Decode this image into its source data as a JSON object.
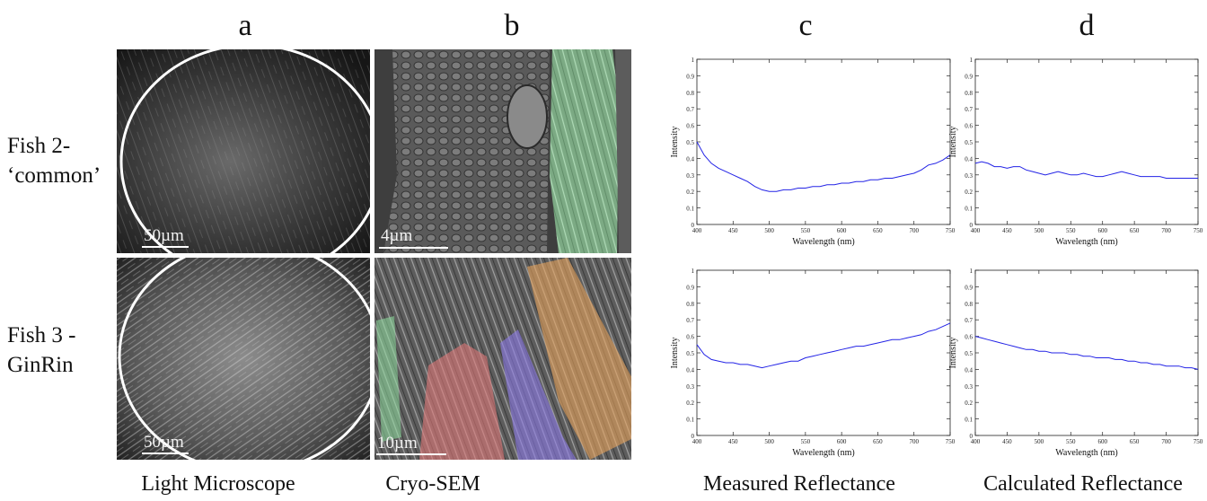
{
  "columns": [
    {
      "letter": "a",
      "caption": "Light Microscope"
    },
    {
      "letter": "b",
      "caption": "Cryo-SEM"
    },
    {
      "letter": "c",
      "caption": "Measured Reflectance"
    },
    {
      "letter": "d",
      "caption": "Calculated Reflectance"
    }
  ],
  "rows": [
    {
      "label_line1": "Fish 2-",
      "label_line2": "‘common’"
    },
    {
      "label_line1": "Fish 3 -",
      "label_line2": "GinRin"
    }
  ],
  "scale_bars": {
    "lm_top": "50µm",
    "sem_top": "4µm",
    "lm_bottom": "50µm",
    "sem_bottom": "10µm"
  },
  "colors": {
    "series": "#2323e6",
    "overlay_green": "#8fe0a0",
    "overlay_red": "#e07878",
    "overlay_purple": "#8c7ae8",
    "overlay_orange": "#e8a45c"
  },
  "chart_data": [
    {
      "type": "line",
      "id": "c-top",
      "xlabel": "Wavelength (nm)",
      "ylabel": "Intensity",
      "xlim": [
        400,
        750
      ],
      "ylim": [
        0,
        1
      ],
      "xticks": [
        400,
        450,
        500,
        550,
        600,
        650,
        700,
        750
      ],
      "yticks": [
        0,
        0.1,
        0.2,
        0.3,
        0.4,
        0.5,
        0.6,
        0.7,
        0.8,
        0.9,
        1
      ],
      "series": [
        {
          "x": [
            400,
            410,
            420,
            430,
            440,
            450,
            460,
            470,
            480,
            490,
            500,
            510,
            520,
            530,
            540,
            550,
            560,
            570,
            580,
            590,
            600,
            610,
            620,
            630,
            640,
            650,
            660,
            670,
            680,
            690,
            700,
            710,
            720,
            730,
            740,
            750
          ],
          "y": [
            0.5,
            0.42,
            0.37,
            0.34,
            0.32,
            0.3,
            0.28,
            0.26,
            0.23,
            0.21,
            0.2,
            0.2,
            0.21,
            0.21,
            0.22,
            0.22,
            0.23,
            0.23,
            0.24,
            0.24,
            0.25,
            0.25,
            0.26,
            0.26,
            0.27,
            0.27,
            0.28,
            0.28,
            0.29,
            0.3,
            0.31,
            0.33,
            0.36,
            0.37,
            0.39,
            0.42
          ]
        }
      ]
    },
    {
      "type": "line",
      "id": "d-top",
      "xlabel": "Wavelength (nm)",
      "ylabel": "Intensity",
      "xlim": [
        400,
        750
      ],
      "ylim": [
        0,
        1
      ],
      "xticks": [
        400,
        450,
        500,
        550,
        600,
        650,
        700,
        750
      ],
      "yticks": [
        0,
        0.1,
        0.2,
        0.3,
        0.4,
        0.5,
        0.6,
        0.7,
        0.8,
        0.9,
        1
      ],
      "series": [
        {
          "x": [
            400,
            410,
            420,
            430,
            440,
            450,
            460,
            470,
            480,
            490,
            500,
            510,
            520,
            530,
            540,
            550,
            560,
            570,
            580,
            590,
            600,
            610,
            620,
            630,
            640,
            650,
            660,
            670,
            680,
            690,
            700,
            710,
            720,
            730,
            740,
            750
          ],
          "y": [
            0.37,
            0.38,
            0.37,
            0.35,
            0.35,
            0.34,
            0.35,
            0.35,
            0.33,
            0.32,
            0.31,
            0.3,
            0.31,
            0.32,
            0.31,
            0.3,
            0.3,
            0.31,
            0.3,
            0.29,
            0.29,
            0.3,
            0.31,
            0.32,
            0.31,
            0.3,
            0.29,
            0.29,
            0.29,
            0.29,
            0.28,
            0.28,
            0.28,
            0.28,
            0.28,
            0.28
          ]
        }
      ]
    },
    {
      "type": "line",
      "id": "c-bottom",
      "xlabel": "Wavelength (nm)",
      "ylabel": "Intensity",
      "xlim": [
        400,
        750
      ],
      "ylim": [
        0,
        1
      ],
      "xticks": [
        400,
        450,
        500,
        550,
        600,
        650,
        700,
        750
      ],
      "yticks": [
        0,
        0.1,
        0.2,
        0.3,
        0.4,
        0.5,
        0.6,
        0.7,
        0.8,
        0.9,
        1
      ],
      "series": [
        {
          "x": [
            400,
            410,
            420,
            430,
            440,
            450,
            460,
            470,
            480,
            490,
            500,
            510,
            520,
            530,
            540,
            550,
            560,
            570,
            580,
            590,
            600,
            610,
            620,
            630,
            640,
            650,
            660,
            670,
            680,
            690,
            700,
            710,
            720,
            730,
            740,
            750
          ],
          "y": [
            0.55,
            0.49,
            0.46,
            0.45,
            0.44,
            0.44,
            0.43,
            0.43,
            0.42,
            0.41,
            0.42,
            0.43,
            0.44,
            0.45,
            0.45,
            0.47,
            0.48,
            0.49,
            0.5,
            0.51,
            0.52,
            0.53,
            0.54,
            0.54,
            0.55,
            0.56,
            0.57,
            0.58,
            0.58,
            0.59,
            0.6,
            0.61,
            0.63,
            0.64,
            0.66,
            0.68
          ]
        }
      ]
    },
    {
      "type": "line",
      "id": "d-bottom",
      "xlabel": "Wavelength (nm)",
      "ylabel": "Intensity",
      "xlim": [
        400,
        750
      ],
      "ylim": [
        0,
        1
      ],
      "xticks": [
        400,
        450,
        500,
        550,
        600,
        650,
        700,
        750
      ],
      "yticks": [
        0,
        0.1,
        0.2,
        0.3,
        0.4,
        0.5,
        0.6,
        0.7,
        0.8,
        0.9,
        1
      ],
      "series": [
        {
          "x": [
            400,
            410,
            420,
            430,
            440,
            450,
            460,
            470,
            480,
            490,
            500,
            510,
            520,
            530,
            540,
            550,
            560,
            570,
            580,
            590,
            600,
            610,
            620,
            630,
            640,
            650,
            660,
            670,
            680,
            690,
            700,
            710,
            720,
            730,
            740,
            750
          ],
          "y": [
            0.6,
            0.59,
            0.58,
            0.57,
            0.56,
            0.55,
            0.54,
            0.53,
            0.52,
            0.52,
            0.51,
            0.51,
            0.5,
            0.5,
            0.5,
            0.49,
            0.49,
            0.48,
            0.48,
            0.47,
            0.47,
            0.47,
            0.46,
            0.46,
            0.45,
            0.45,
            0.44,
            0.44,
            0.43,
            0.43,
            0.42,
            0.42,
            0.42,
            0.41,
            0.41,
            0.4
          ]
        }
      ]
    }
  ]
}
